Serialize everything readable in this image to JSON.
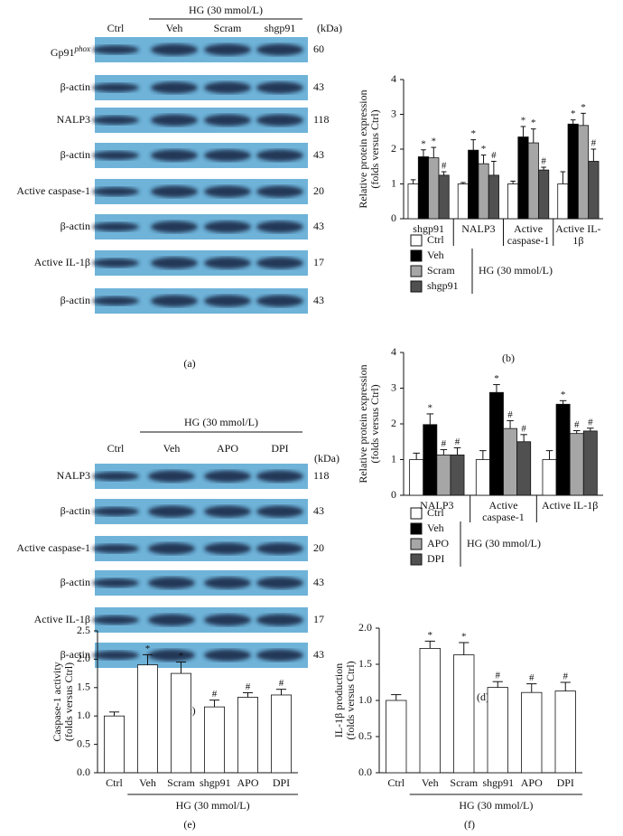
{
  "blots": [
    {
      "panel_label": "(a)",
      "group_label": "HG (30 mmol/L)",
      "unit": "(kDa)",
      "lanes": [
        "Ctrl",
        "Veh",
        "Scram",
        "shgp91"
      ],
      "rows": [
        {
          "label": {
            "text": "Gp91",
            "superscript": "phox"
          },
          "kda": 60
        },
        {
          "label": {
            "text": "β-actin"
          },
          "kda": 43
        },
        {
          "label": {
            "text": "NALP3"
          },
          "kda": 118
        },
        {
          "label": {
            "text": "β-actin"
          },
          "kda": 43
        },
        {
          "label": {
            "text": "Active caspase-1"
          },
          "kda": 20
        },
        {
          "label": {
            "text": "β-actin"
          },
          "kda": 43
        },
        {
          "label": {
            "text": "Active IL-1β"
          },
          "kda": 17
        },
        {
          "label": {
            "text": "β-actin"
          },
          "kda": 43
        }
      ]
    },
    {
      "panel_label": "(c)",
      "group_label": "HG (30 mmol/L)",
      "unit": "(kDa)",
      "lanes": [
        "Ctrl",
        "Veh",
        "APO",
        "DPI"
      ],
      "rows": [
        {
          "label": {
            "text": "NALP3"
          },
          "kda": 118
        },
        {
          "label": {
            "text": "β-actin"
          },
          "kda": 43
        },
        {
          "label": {
            "text": "Active caspase-1"
          },
          "kda": 20
        },
        {
          "label": {
            "text": "β-actin"
          },
          "kda": 43
        },
        {
          "label": {
            "text": "Active IL-1β"
          },
          "kda": 17
        },
        {
          "label": {
            "text": "β-actin"
          },
          "kda": 43
        }
      ]
    }
  ],
  "chart_data": [
    {
      "type": "bar",
      "panel_label": "(b)",
      "ylabel": [
        "Relative protein expression",
        "(folds versus Ctrl)"
      ],
      "categories": [
        "shgp91",
        "NALP3",
        "Active caspase-1",
        "Active IL-1β"
      ],
      "ylim": [
        0,
        4
      ],
      "yticks": [
        0,
        1,
        2,
        3,
        4
      ],
      "legend_group_label": "HG (30 mmol/L)",
      "series": [
        {
          "name": "Ctrl",
          "color": "#ffffff",
          "values": [
            1.0,
            1.0,
            1.0,
            1.0
          ],
          "errors": [
            0.12,
            0.04,
            0.08,
            0.35
          ],
          "annotations": [
            null,
            null,
            null,
            null
          ]
        },
        {
          "name": "Veh",
          "color": "#000000",
          "values": [
            1.78,
            1.97,
            2.35,
            2.72
          ],
          "errors": [
            0.2,
            0.3,
            0.3,
            0.12
          ],
          "annotations": [
            "*",
            "*",
            "*",
            "*"
          ]
        },
        {
          "name": "Scram",
          "color": "#a6a6a6",
          "values": [
            1.75,
            1.58,
            2.18,
            2.68
          ],
          "errors": [
            0.3,
            0.25,
            0.4,
            0.35
          ],
          "annotations": [
            "*",
            "*",
            "*",
            "*"
          ]
        },
        {
          "name": "shgp91",
          "color": "#505050",
          "values": [
            1.25,
            1.25,
            1.4,
            1.65
          ],
          "errors": [
            0.1,
            0.4,
            0.08,
            0.35
          ],
          "annotations": [
            "#",
            "#",
            "#",
            "#"
          ]
        }
      ]
    },
    {
      "type": "bar",
      "panel_label": "(d)",
      "ylabel": [
        "Relative protein expression",
        "(folds versus Ctrl)"
      ],
      "categories": [
        "NALP3",
        "Active caspase-1",
        "Active IL-1β"
      ],
      "ylim": [
        0,
        4
      ],
      "yticks": [
        0,
        1,
        2,
        3,
        4
      ],
      "legend_group_label": "HG (30 mmol/L)",
      "series": [
        {
          "name": "Ctrl",
          "color": "#ffffff",
          "values": [
            1.0,
            1.0,
            1.0
          ],
          "errors": [
            0.18,
            0.25,
            0.25
          ],
          "annotations": [
            null,
            null,
            null
          ]
        },
        {
          "name": "Veh",
          "color": "#000000",
          "values": [
            1.98,
            2.88,
            2.55
          ],
          "errors": [
            0.3,
            0.22,
            0.1
          ],
          "annotations": [
            "*",
            "*",
            "*"
          ]
        },
        {
          "name": "APO",
          "color": "#a6a6a6",
          "values": [
            1.13,
            1.87,
            1.73
          ],
          "errors": [
            0.15,
            0.22,
            0.08
          ],
          "annotations": [
            "#",
            "#",
            "#"
          ]
        },
        {
          "name": "DPI",
          "color": "#505050",
          "values": [
            1.13,
            1.5,
            1.8
          ],
          "errors": [
            0.2,
            0.2,
            0.08
          ],
          "annotations": [
            "#",
            "#",
            "#"
          ]
        }
      ]
    },
    {
      "type": "bar",
      "panel_label": "(e)",
      "ylabel": [
        "Caspase-1 activity",
        "(folds versus Ctrl)"
      ],
      "categories": [
        "Ctrl",
        "Veh",
        "Scram",
        "shgp91",
        "APO",
        "DPI"
      ],
      "group_label": "HG (30 mmol/L)",
      "values": [
        1.0,
        1.9,
        1.75,
        1.16,
        1.33,
        1.37
      ],
      "errors": [
        0.07,
        0.18,
        0.2,
        0.12,
        0.08,
        0.1
      ],
      "annotations": [
        null,
        "*",
        "*",
        "#",
        "#",
        "#"
      ],
      "color": "#ffffff",
      "ylim": [
        0,
        2.5
      ],
      "yticks": [
        {
          "value": 0,
          "label": "0.0"
        },
        0.5,
        {
          "value": 1,
          "label": "1.0"
        },
        1.5,
        {
          "value": 2,
          "label": "2.0"
        },
        2.5
      ]
    },
    {
      "type": "bar",
      "panel_label": "(f)",
      "ylabel": [
        "IL-1β production",
        "(folds versus Ctrl)"
      ],
      "categories": [
        "Ctrl",
        "Veh",
        "Scram",
        "shgp91",
        "APO",
        "DPI"
      ],
      "group_label": "HG (30 mmol/L)",
      "values": [
        1.0,
        1.72,
        1.63,
        1.18,
        1.11,
        1.13
      ],
      "errors": [
        0.08,
        0.1,
        0.17,
        0.08,
        0.12,
        0.12
      ],
      "annotations": [
        null,
        "*",
        "*",
        "#",
        "#",
        "#"
      ],
      "color": "#ffffff",
      "ylim": [
        0,
        2
      ],
      "yticks": [
        {
          "value": 0,
          "label": "0.0"
        },
        0.5,
        {
          "value": 1,
          "label": "1.0"
        },
        1.5,
        {
          "value": 2,
          "label": "2.0"
        }
      ]
    }
  ]
}
